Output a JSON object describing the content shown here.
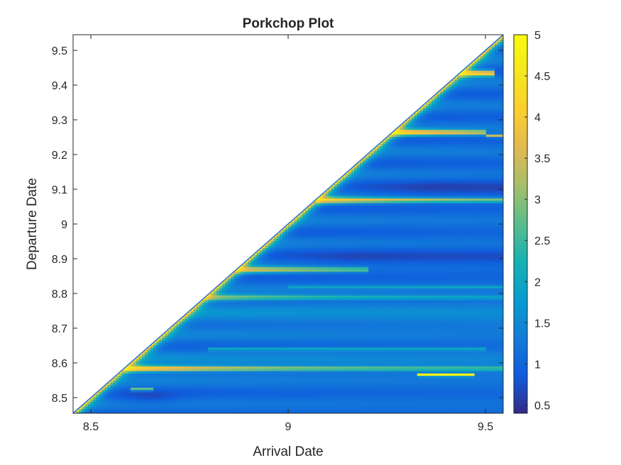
{
  "chart_data": {
    "type": "heatmap",
    "title": "Porkchop Plot",
    "xlabel": "Arrival Date",
    "ylabel": "Departure Date",
    "xlim": [
      8.455,
      9.545
    ],
    "ylim": [
      8.455,
      9.545
    ],
    "xticks": [
      8.5,
      9,
      9.5
    ],
    "xtick_labels": [
      "8.5",
      "9",
      "9.5"
    ],
    "yticks": [
      8.5,
      8.6,
      8.7,
      8.8,
      8.9,
      9.0,
      9.1,
      9.2,
      9.3,
      9.4,
      9.5
    ],
    "ytick_labels": [
      "8.5",
      "8.6",
      "8.7",
      "8.8",
      "8.9",
      "9",
      "9.1",
      "9.2",
      "9.3",
      "9.4",
      "9.5"
    ],
    "colorbar": {
      "colormap": "parula",
      "range": [
        0.4,
        5.0
      ],
      "ticks": [
        0.5,
        1,
        1.5,
        2,
        2.5,
        3,
        3.5,
        4,
        4.5,
        5
      ],
      "tick_labels": [
        "0.5",
        "1",
        "1.5",
        "2",
        "2.5",
        "3",
        "3.5",
        "4",
        "4.5",
        "5"
      ]
    },
    "valid_region": "departure_date <= arrival_date",
    "background": 1.1,
    "diagonal_value": 5.0,
    "bands": [
      {
        "departure": 8.585,
        "arrival_end": 9.545,
        "value": 4.6
      },
      {
        "departure": 8.79,
        "arrival_end": 9.545,
        "value": 3.2
      },
      {
        "departure": 8.87,
        "arrival_end": 9.2,
        "value": 3.8
      },
      {
        "departure": 9.07,
        "arrival_end": 9.545,
        "value": 4.3
      },
      {
        "departure": 9.265,
        "arrival_end": 9.5,
        "value": 4.5
      },
      {
        "departure": 9.435,
        "arrival_end": 9.52,
        "value": 4.5
      }
    ],
    "streaks": [
      {
        "departure": 8.567,
        "arrival_start": 9.33,
        "arrival_end": 9.47,
        "value": 4.9
      },
      {
        "departure": 8.525,
        "arrival_start": 8.6,
        "arrival_end": 8.66,
        "value": 3.0
      },
      {
        "departure": 8.64,
        "arrival_start": 8.8,
        "arrival_end": 9.5,
        "value": 2.3
      },
      {
        "departure": 8.82,
        "arrival_start": 9.0,
        "arrival_end": 9.545,
        "value": 2.0
      },
      {
        "departure": 9.255,
        "arrival_start": 9.5,
        "arrival_end": 9.545,
        "value": 3.4
      }
    ]
  }
}
